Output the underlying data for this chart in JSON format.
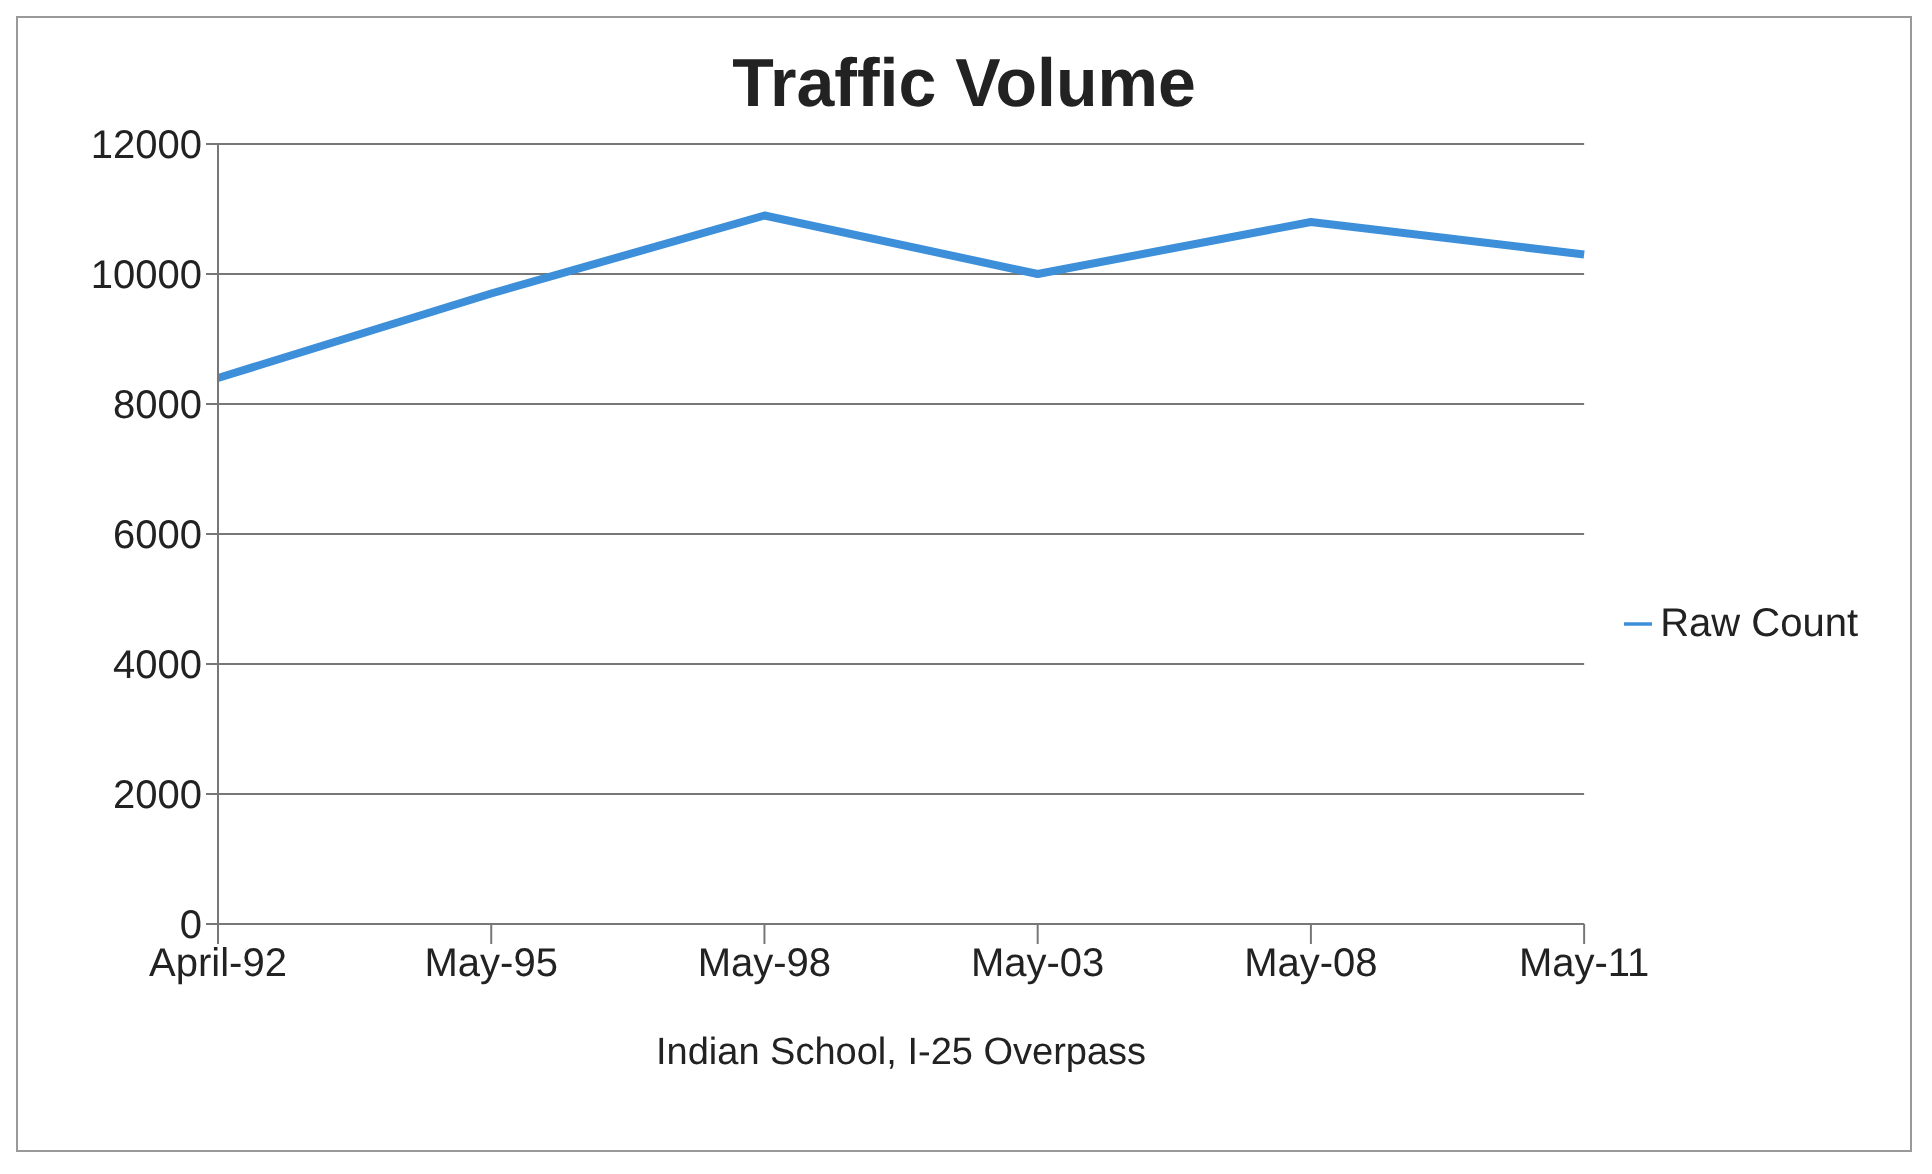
{
  "chart_data": {
    "type": "line",
    "title": "Traffic Volume",
    "xlabel": "Indian School, I-25 Overpass",
    "categories": [
      "April-92",
      "May-95",
      "May-98",
      "May-03",
      "May-08",
      "May-11"
    ],
    "series": [
      {
        "name": "Raw Count",
        "color": "#3c8fd8",
        "values": [
          8400,
          9700,
          10900,
          10000,
          10800,
          10300
        ]
      }
    ],
    "ylim": [
      0,
      12000
    ],
    "yticks": [
      0,
      2000,
      4000,
      6000,
      8000,
      10000,
      12000
    ],
    "grid": "y",
    "legend": "right",
    "marker": "none",
    "line_style": "solid"
  }
}
